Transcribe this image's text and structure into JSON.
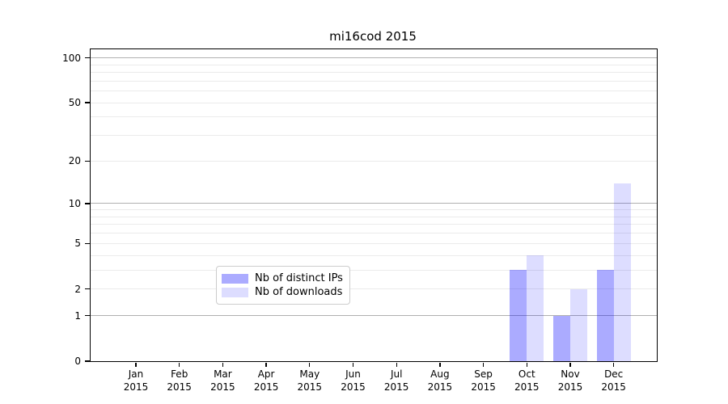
{
  "figure": {
    "background": "#ffffff",
    "text_color": "#000000"
  },
  "chart_data": {
    "type": "bar",
    "title": "mi16cod 2015",
    "xlabel": "",
    "ylabel": "",
    "yscale": "log1p",
    "ylim": [
      0,
      114
    ],
    "yticks": [
      0,
      1,
      2,
      5,
      10,
      20,
      50,
      100
    ],
    "grid_major_values": [
      1,
      10,
      100
    ],
    "grid_minor_values": [
      2,
      3,
      4,
      5,
      6,
      7,
      8,
      9,
      20,
      30,
      40,
      50,
      60,
      70,
      80,
      90
    ],
    "categories": [
      "Jan",
      "Feb",
      "Mar",
      "Apr",
      "May",
      "Jun",
      "Jul",
      "Aug",
      "Sep",
      "Oct",
      "Nov",
      "Dec"
    ],
    "category_year": "2015",
    "legend_position": "lower center",
    "series": [
      {
        "name": "Nb of distinct IPs",
        "color": "rgba(0,0,255,0.33)",
        "values": [
          0,
          0,
          0,
          0,
          0,
          0,
          0,
          0,
          0,
          3,
          1,
          3
        ]
      },
      {
        "name": "Nb of downloads",
        "color": "rgba(0,0,255,0.135)",
        "values": [
          0,
          0,
          0,
          0,
          0,
          0,
          0,
          0,
          0,
          4,
          2,
          14
        ]
      }
    ],
    "grid_colors": {
      "major": "#b0b0b0",
      "minor": "#ebebeb"
    }
  }
}
